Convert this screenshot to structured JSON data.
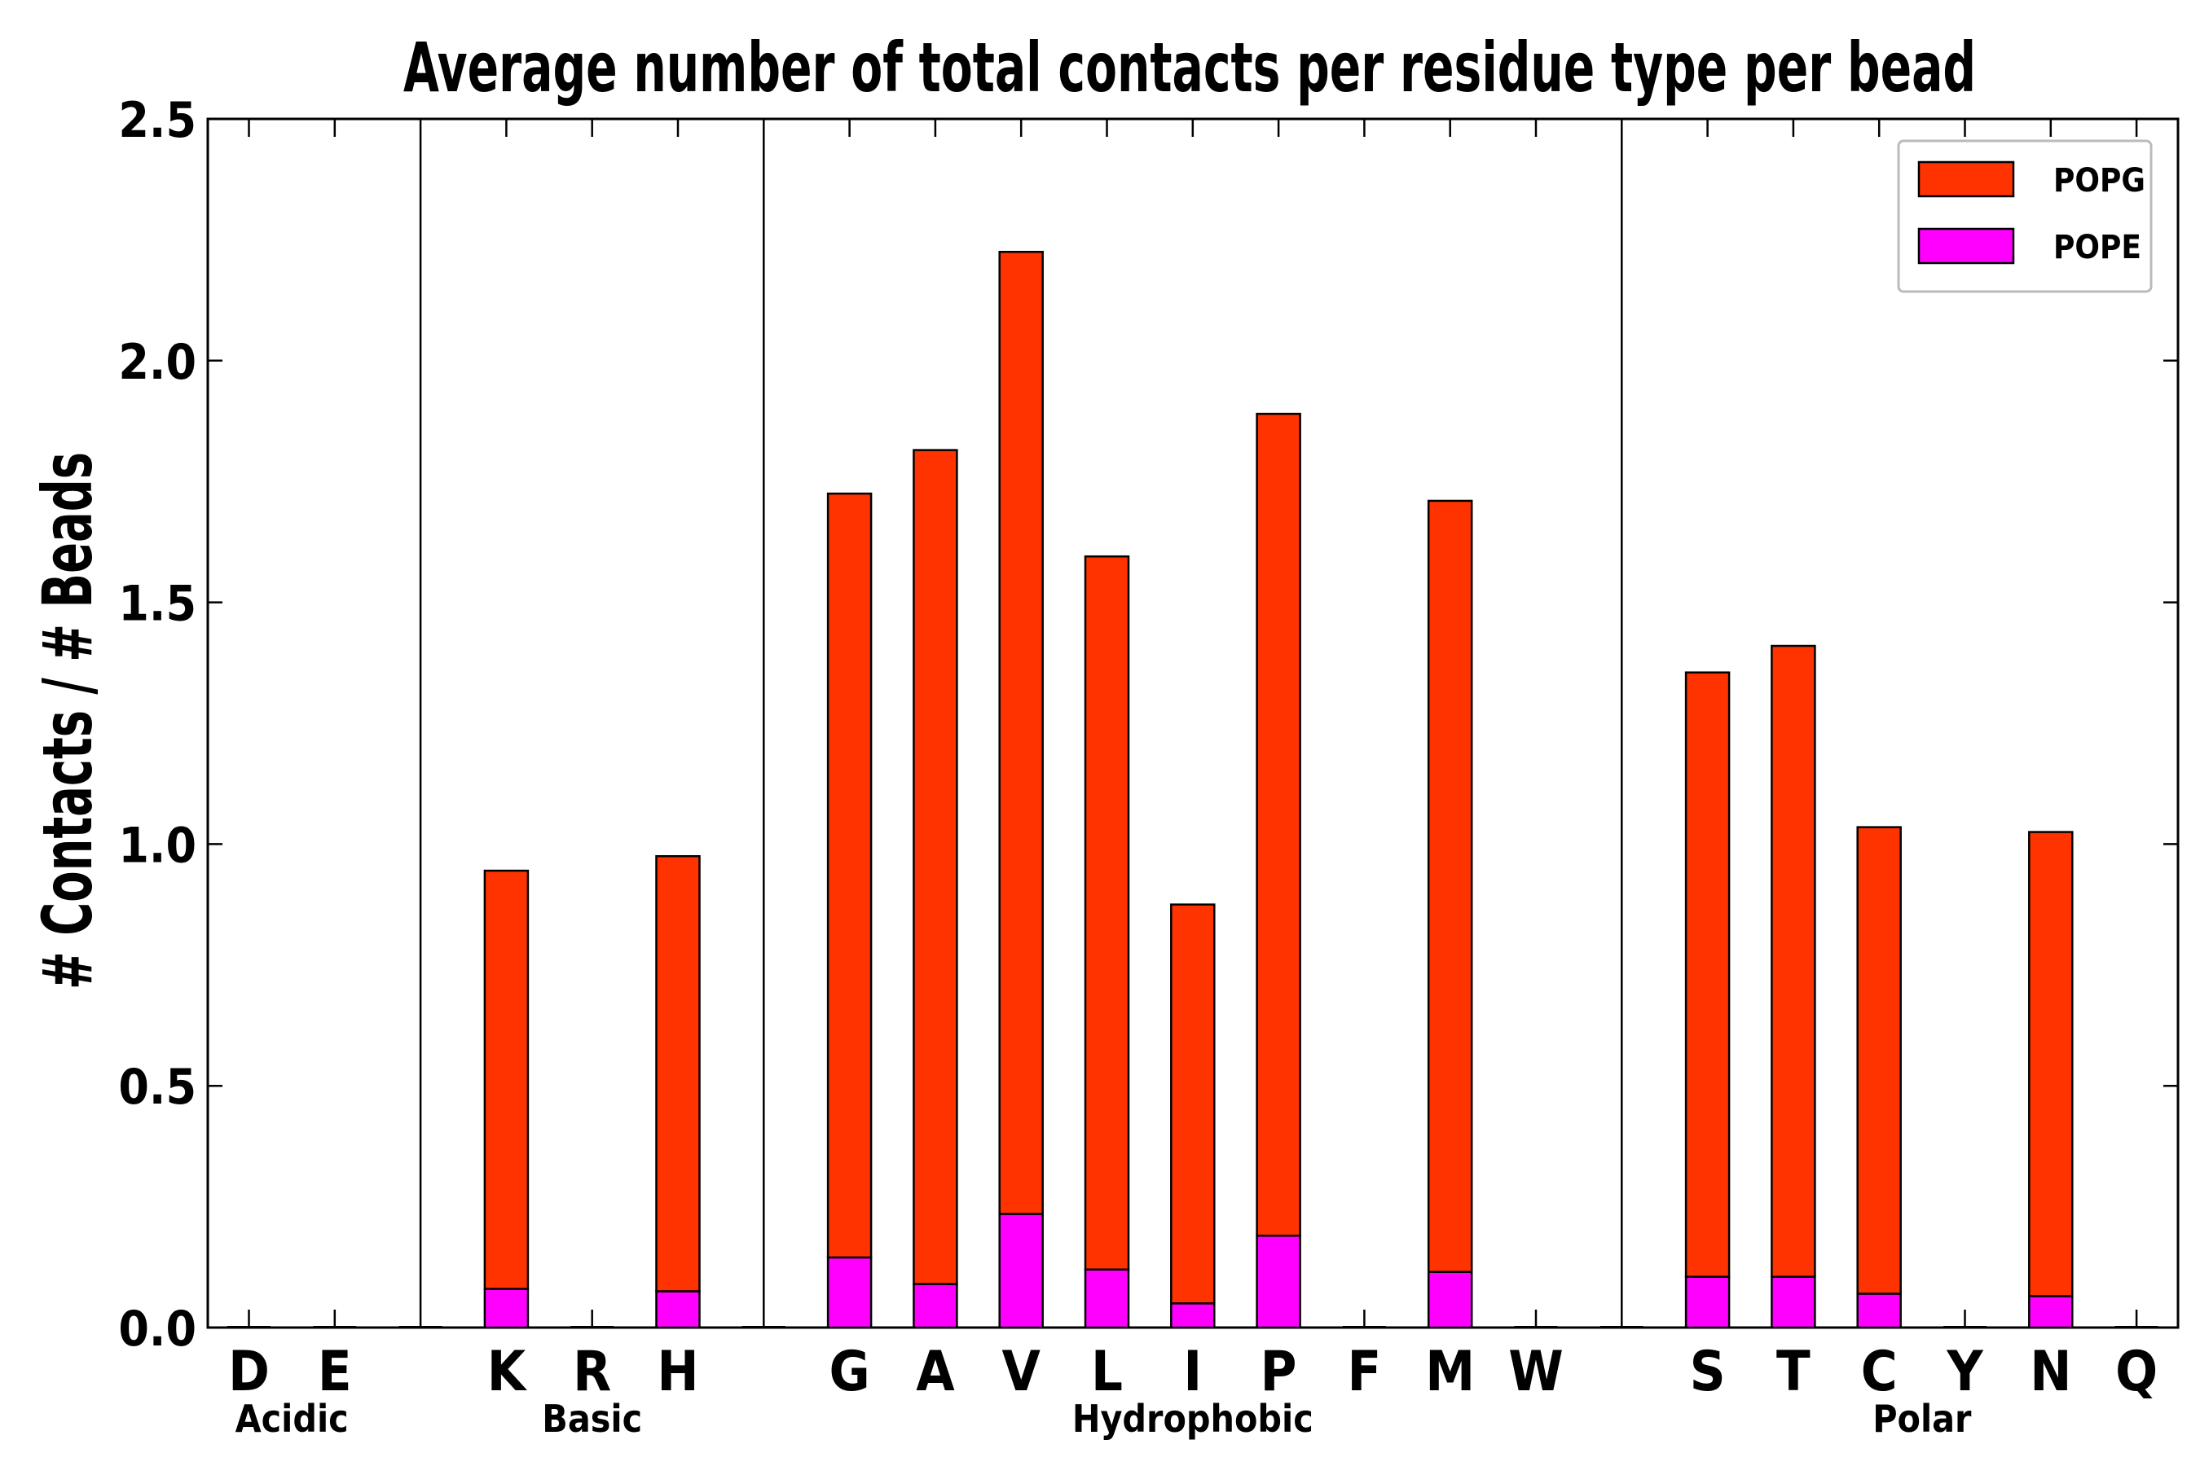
{
  "chart_data": {
    "type": "bar",
    "stacked": true,
    "title": "Average number of total contacts per residue type per bead",
    "xlabel": "",
    "ylabel": "# Contacts / # Beads",
    "ylim": [
      0.0,
      2.5
    ],
    "yticks": [
      "0.0",
      "0.5",
      "1.0",
      "1.5",
      "2.0",
      "2.5"
    ],
    "categories": [
      "D",
      "E",
      "K",
      "R",
      "H",
      "G",
      "A",
      "V",
      "L",
      "I",
      "P",
      "F",
      "M",
      "W",
      "S",
      "T",
      "C",
      "Y",
      "N",
      "Q"
    ],
    "series": [
      {
        "name": "POPE",
        "color": "#ff00ff",
        "values": [
          0,
          0,
          0.08,
          0,
          0.075,
          0.145,
          0.09,
          0.235,
          0.12,
          0.05,
          0.19,
          0,
          0.115,
          0,
          0.105,
          0.105,
          0.07,
          0,
          0.065,
          0
        ]
      },
      {
        "name": "POPG",
        "color": "#ff3300",
        "values": [
          0,
          0,
          0.865,
          0,
          0.9,
          1.58,
          1.725,
          1.99,
          1.475,
          0.825,
          1.7,
          0,
          1.595,
          0,
          1.25,
          1.305,
          0.965,
          0,
          0.96,
          0
        ]
      }
    ],
    "groups": [
      {
        "label": "Acidic",
        "members": [
          "D",
          "E"
        ]
      },
      {
        "label": "Basic",
        "members": [
          "K",
          "R",
          "H"
        ]
      },
      {
        "label": "Hydrophobic",
        "members": [
          "G",
          "A",
          "V",
          "L",
          "I",
          "P",
          "F",
          "M",
          "W"
        ]
      },
      {
        "label": "Polar",
        "members": [
          "S",
          "T",
          "C",
          "Y",
          "N",
          "Q"
        ]
      }
    ],
    "legend": {
      "position": "top-right",
      "entries": [
        {
          "label": "POPG",
          "color": "#ff3300"
        },
        {
          "label": "POPE",
          "color": "#ff00ff"
        }
      ]
    }
  }
}
